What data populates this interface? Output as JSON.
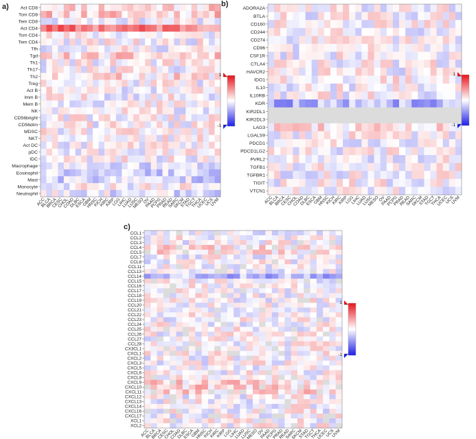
{
  "chart_data": [
    {
      "type": "heatmap",
      "panel_label": "a)",
      "title": "",
      "rows": [
        "Act CD8",
        "Tcm CD8",
        "Tem CD8",
        "Act CD4",
        "Tcm CD4",
        "Tem CD4",
        "Tfh",
        "Tgd",
        "Th1",
        "Th17",
        "Th2",
        "Treg",
        "Act B",
        "Imm B",
        "Mem B",
        "NK",
        "CD56bright",
        "CD56dim",
        "MDSC",
        "NKT",
        "Act DC",
        "pDC",
        "IDC",
        "Macrophage",
        "Eosinophil",
        "Mast",
        "Monocyte",
        "Neutrophil"
      ],
      "columns": [
        "ACC",
        "BLCA",
        "BRCA",
        "CESC",
        "CHOL",
        "COAD",
        "DLBC",
        "ESCA",
        "GBM",
        "HNSC",
        "KICH",
        "KIRC",
        "KIRP",
        "LGG",
        "LIHC",
        "LUAD",
        "LUSC",
        "MESO",
        "OV",
        "PAAD",
        "PCPG",
        "PRAD",
        "READ",
        "SARC",
        "SKCM",
        "STAD",
        "TGCT",
        "THCA",
        "UCEC",
        "UCS",
        "UVM"
      ],
      "legend_labels": [
        "1",
        "-1"
      ],
      "color_range": [
        -1,
        1
      ],
      "colors": {
        "positive": "#e8141b",
        "zero": "#ffffff",
        "negative": "#1e1ee8"
      },
      "highlight_rows": {
        "Act CD4": 0.55,
        "Tcm CD8": 0.2,
        "Act CD8": 0.18,
        "Tgd": 0.15,
        "Th2": 0.12,
        "Macrophage": -0.15,
        "Eosinophil": -0.18,
        "Mast": -0.15,
        "Neutrophil": -0.1
      }
    },
    {
      "type": "heatmap",
      "panel_label": "b)",
      "title": "",
      "rows": [
        "ADORA2A",
        "BTLA",
        "CD160",
        "CD244",
        "CD274",
        "CD96",
        "CSF1R",
        "CTLA4",
        "HAVCR2",
        "IDO1",
        "IL10",
        "IL10RB",
        "KDR",
        "KIR2DL1",
        "KIR2DL3",
        "LAG3",
        "LGALS9",
        "PDCD1",
        "PDCD1LG2",
        "PVRL2",
        "TGFB1",
        "TGFBR1",
        "TIGIT",
        "VTCN1"
      ],
      "columns": [
        "ACC",
        "BLCA",
        "BRCA",
        "CESC",
        "CHOL",
        "COAD",
        "DLBC",
        "ESCA",
        "GBM",
        "HNSC",
        "KICH",
        "KIRC",
        "KIRP",
        "LGG",
        "LIHC",
        "LUAD",
        "LUSC",
        "MESO",
        "OV",
        "PAAD",
        "PCPG",
        "PRAD",
        "READ",
        "SARC",
        "SKCM",
        "STAD",
        "TGCT",
        "THCA",
        "UCEC",
        "UCS",
        "UVM"
      ],
      "legend_labels": [
        "1",
        "-1"
      ],
      "color_range": [
        -1,
        1
      ],
      "colors": {
        "positive": "#e8141b",
        "zero": "#ffffff",
        "negative": "#1e1ee8"
      },
      "highlight_rows": {
        "KDR": -0.35,
        "KIR2DL1": 0.0,
        "KIR2DL3": 0.0,
        "LAG3": 0.12,
        "IDO1": 0.08
      }
    },
    {
      "type": "heatmap",
      "panel_label": "c)",
      "title": "",
      "rows": [
        "CCL1",
        "CCL2",
        "CCL3",
        "CCL4",
        "CCL5",
        "CCL7",
        "CCL8",
        "CCL11",
        "CCL13",
        "CCL14",
        "CCL15",
        "CCL16",
        "CCL17",
        "CCL18",
        "CCL19",
        "CCL20",
        "CCL21",
        "CCL22",
        "CCL23",
        "CCL24",
        "CCL25",
        "CCL26",
        "CCL27",
        "CCL28",
        "CX3CL1",
        "CXCL1",
        "CXCL2",
        "CXCL3",
        "CXCL5",
        "CXCL6",
        "CXCL8",
        "CXCL9",
        "CXCL10",
        "CXCL11",
        "CXCL12",
        "CXCL13",
        "CXCL14",
        "CXCL16",
        "CXCL17",
        "XCL1",
        "XCL2"
      ],
      "columns": [
        "ACC",
        "BLCA",
        "BRCA",
        "CESC",
        "CHOL",
        "COAD",
        "DLBC",
        "ESCA",
        "GBM",
        "HNSC",
        "KICH",
        "KIRC",
        "KIRP",
        "LGG",
        "LIHC",
        "LUAD",
        "LUSC",
        "MESO",
        "OV",
        "PAAD",
        "PCPG",
        "PRAD",
        "READ",
        "SARC",
        "SKCM",
        "STAD",
        "TGCT",
        "THCA",
        "UCEC",
        "UCS",
        "UVM"
      ],
      "legend_labels": [
        "1",
        "-1"
      ],
      "color_range": [
        -1,
        1
      ],
      "colors": {
        "positive": "#e8141b",
        "zero": "#ffffff",
        "negative": "#1e1ee8"
      },
      "highlight_rows": {
        "CCL14": -0.3,
        "CXCL9": 0.15,
        "CXCL10": 0.18,
        "CXCL11": 0.15,
        "CCL5": 0.1,
        "CCL4": 0.1
      }
    }
  ]
}
